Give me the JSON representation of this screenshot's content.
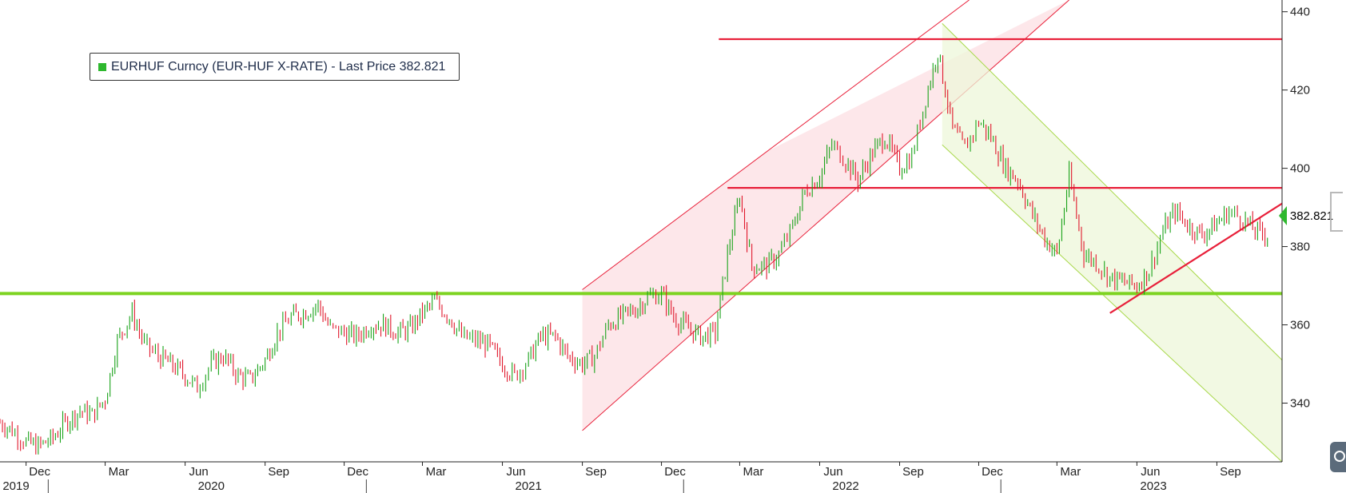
{
  "legend": {
    "label": "EURHUF Curncy (EUR-HUF X-RATE) - Last Price 382.821",
    "color": "#2eb82e"
  },
  "price_tag": {
    "text": "382.821",
    "color": "#2eb82e"
  },
  "chart_data": {
    "type": "candlestick",
    "title": "",
    "xlabel": "",
    "ylabel": "",
    "ylim": [
      325,
      443
    ],
    "y_ticks": [
      340,
      360,
      380,
      400,
      420,
      440
    ],
    "x_range": [
      "2019-11-01",
      "2023-11-15"
    ],
    "month_ticks": [
      {
        "date": "2019-12-01",
        "label": "Dec"
      },
      {
        "date": "2020-03-01",
        "label": "Mar"
      },
      {
        "date": "2020-06-01",
        "label": "Jun"
      },
      {
        "date": "2020-09-01",
        "label": "Sep"
      },
      {
        "date": "2020-12-01",
        "label": "Dec"
      },
      {
        "date": "2021-03-01",
        "label": "Mar"
      },
      {
        "date": "2021-06-01",
        "label": "Jun"
      },
      {
        "date": "2021-09-01",
        "label": "Sep"
      },
      {
        "date": "2021-12-01",
        "label": "Dec"
      },
      {
        "date": "2022-03-01",
        "label": "Mar"
      },
      {
        "date": "2022-06-01",
        "label": "Jun"
      },
      {
        "date": "2022-09-01",
        "label": "Sep"
      },
      {
        "date": "2022-12-01",
        "label": "Dec"
      },
      {
        "date": "2023-03-01",
        "label": "Mar"
      },
      {
        "date": "2023-06-01",
        "label": "Jun"
      },
      {
        "date": "2023-09-01",
        "label": "Sep"
      }
    ],
    "year_labels": [
      {
        "label": "2019",
        "date": "2019-11-10"
      },
      {
        "label": "2020",
        "date": "2020-07-01"
      },
      {
        "label": "2021",
        "date": "2021-07-01"
      },
      {
        "label": "2022",
        "date": "2022-07-01"
      },
      {
        "label": "2023",
        "date": "2023-06-20"
      }
    ],
    "year_separators": [
      "2020-01-01",
      "2021-01-01",
      "2022-01-01",
      "2023-01-01"
    ],
    "series": [
      {
        "name": "EURHUF Curncy (EUR-HUF X-RATE)",
        "last_price": 382.821,
        "points": [
          [
            "2019-11-01",
            335
          ],
          [
            "2019-11-15",
            333
          ],
          [
            "2019-12-01",
            330
          ],
          [
            "2019-12-15",
            329
          ],
          [
            "2020-01-01",
            331
          ],
          [
            "2020-01-15",
            335
          ],
          [
            "2020-02-01",
            338
          ],
          [
            "2020-02-15",
            337
          ],
          [
            "2020-03-01",
            341
          ],
          [
            "2020-03-15",
            356
          ],
          [
            "2020-04-01",
            363
          ],
          [
            "2020-04-15",
            355
          ],
          [
            "2020-05-01",
            352
          ],
          [
            "2020-05-15",
            350
          ],
          [
            "2020-06-01",
            347
          ],
          [
            "2020-06-15",
            344
          ],
          [
            "2020-07-01",
            350
          ],
          [
            "2020-07-15",
            352
          ],
          [
            "2020-08-01",
            347
          ],
          [
            "2020-08-15",
            346
          ],
          [
            "2020-09-01",
            351
          ],
          [
            "2020-09-15",
            358
          ],
          [
            "2020-10-01",
            362
          ],
          [
            "2020-10-15",
            363
          ],
          [
            "2020-11-01",
            365
          ],
          [
            "2020-11-15",
            359
          ],
          [
            "2020-12-01",
            358
          ],
          [
            "2020-12-15",
            357
          ],
          [
            "2021-01-01",
            360
          ],
          [
            "2021-01-15",
            360
          ],
          [
            "2021-02-01",
            358
          ],
          [
            "2021-02-15",
            359
          ],
          [
            "2021-03-01",
            363
          ],
          [
            "2021-03-15",
            366
          ],
          [
            "2021-04-01",
            362
          ],
          [
            "2021-04-15",
            357
          ],
          [
            "2021-05-01",
            356
          ],
          [
            "2021-05-15",
            355
          ],
          [
            "2021-06-01",
            350
          ],
          [
            "2021-06-15",
            347
          ],
          [
            "2021-07-01",
            351
          ],
          [
            "2021-07-15",
            357
          ],
          [
            "2021-08-01",
            357
          ],
          [
            "2021-08-15",
            352
          ],
          [
            "2021-09-01",
            350
          ],
          [
            "2021-09-15",
            352
          ],
          [
            "2021-10-01",
            360
          ],
          [
            "2021-10-15",
            362
          ],
          [
            "2021-11-01",
            364
          ],
          [
            "2021-11-15",
            367
          ],
          [
            "2021-12-01",
            368
          ],
          [
            "2021-12-15",
            362
          ],
          [
            "2022-01-01",
            359
          ],
          [
            "2022-01-15",
            357
          ],
          [
            "2022-02-01",
            358
          ],
          [
            "2022-02-15",
            378
          ],
          [
            "2022-03-01",
            393
          ],
          [
            "2022-03-15",
            375
          ],
          [
            "2022-04-01",
            375
          ],
          [
            "2022-04-15",
            378
          ],
          [
            "2022-05-01",
            385
          ],
          [
            "2022-05-15",
            394
          ],
          [
            "2022-06-01",
            398
          ],
          [
            "2022-06-15",
            406
          ],
          [
            "2022-07-01",
            402
          ],
          [
            "2022-07-15",
            397
          ],
          [
            "2022-08-01",
            404
          ],
          [
            "2022-08-15",
            408
          ],
          [
            "2022-09-01",
            400
          ],
          [
            "2022-09-15",
            403
          ],
          [
            "2022-10-01",
            418
          ],
          [
            "2022-10-15",
            430
          ],
          [
            "2022-11-01",
            410
          ],
          [
            "2022-11-15",
            405
          ],
          [
            "2022-12-01",
            412
          ],
          [
            "2022-12-15",
            408
          ],
          [
            "2023-01-01",
            400
          ],
          [
            "2023-01-15",
            397
          ],
          [
            "2023-02-01",
            388
          ],
          [
            "2023-02-15",
            382
          ],
          [
            "2023-03-01",
            378
          ],
          [
            "2023-03-15",
            398
          ],
          [
            "2023-04-01",
            378
          ],
          [
            "2023-04-15",
            376
          ],
          [
            "2023-05-01",
            372
          ],
          [
            "2023-05-15",
            371
          ],
          [
            "2023-06-01",
            370
          ],
          [
            "2023-06-15",
            374
          ],
          [
            "2023-07-01",
            384
          ],
          [
            "2023-07-15",
            389
          ],
          [
            "2023-08-01",
            385
          ],
          [
            "2023-08-15",
            383
          ],
          [
            "2023-09-01",
            386
          ],
          [
            "2023-09-15",
            389
          ],
          [
            "2023-10-01",
            387
          ],
          [
            "2023-10-15",
            384
          ],
          [
            "2023-11-01",
            382.821
          ]
        ]
      }
    ],
    "horizontal_lines": [
      {
        "value": 368,
        "color": "#7dd321",
        "from": "2019-11-01",
        "to": "2023-11-15"
      },
      {
        "value": 395,
        "color": "#e8203a",
        "from": "2022-02-15",
        "to": "2023-11-15"
      },
      {
        "value": 433,
        "color": "#e8203a",
        "from": "2022-02-05",
        "to": "2023-11-15"
      }
    ],
    "trendline": {
      "color": "#e8203a",
      "start": [
        "2023-05-01",
        363
      ],
      "end": [
        "2023-11-15",
        391
      ]
    },
    "channels": [
      {
        "color": "#e8203a",
        "fill": "#fde4e8",
        "lower": [
          [
            "2021-09-01",
            333
          ],
          [
            "2023-03-15",
            443
          ]
        ],
        "upper": [
          [
            "2021-09-01",
            369
          ],
          [
            "2022-11-20",
            443
          ]
        ],
        "fill_to": "2022-04-01"
      },
      {
        "color": "#a8d84a",
        "fill": "#eef7da",
        "upper": [
          [
            "2022-10-20",
            437
          ],
          [
            "2023-11-15",
            351
          ]
        ],
        "lower": [
          [
            "2022-10-20",
            406
          ],
          [
            "2023-11-15",
            325
          ]
        ]
      }
    ]
  }
}
